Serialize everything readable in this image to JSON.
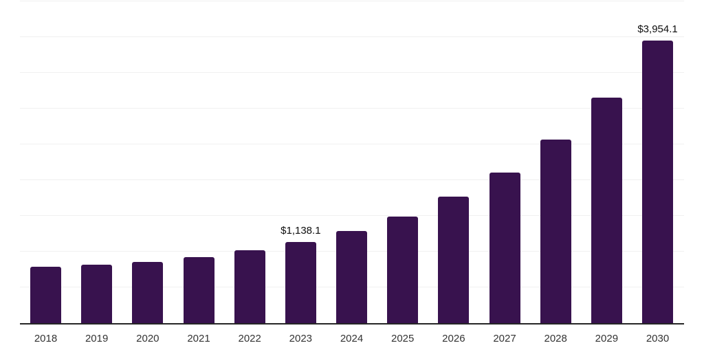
{
  "colors": {
    "background": "#ffffff",
    "bar": "#38124E",
    "grid": "#f0f0f0",
    "axis": "#262626",
    "tick_text": "#333333",
    "value_text": "#0d0d0d"
  },
  "chart_data": {
    "type": "bar",
    "title": "",
    "xlabel": "",
    "ylabel": "",
    "categories": [
      "2018",
      "2019",
      "2020",
      "2021",
      "2022",
      "2023",
      "2024",
      "2025",
      "2026",
      "2027",
      "2028",
      "2029",
      "2030"
    ],
    "values": [
      785,
      820,
      855,
      925,
      1015,
      1138.1,
      1290,
      1495,
      1765,
      2110,
      2565,
      3155,
      3954.1
    ],
    "annotations": [
      {
        "index": 5,
        "text": "$1,138.1"
      },
      {
        "index": 12,
        "text": "$3,954.1"
      }
    ],
    "ylim": [
      0,
      4500
    ],
    "grid_step": 500,
    "grid": true,
    "legend": false,
    "y_axis_labels_visible": false
  }
}
